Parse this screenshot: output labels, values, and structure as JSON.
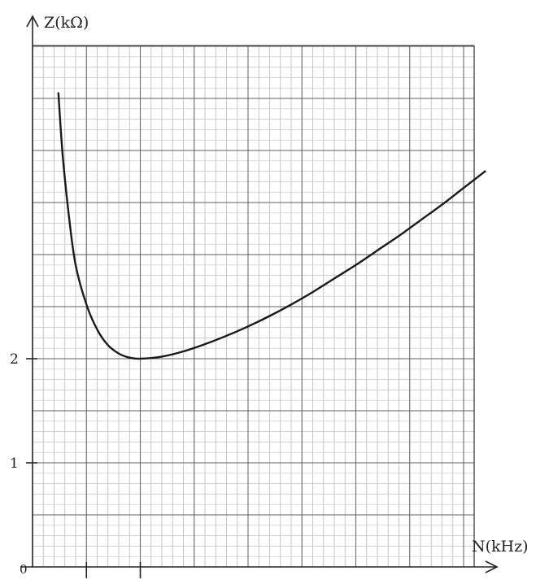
{
  "chart_data": {
    "type": "line",
    "title": "",
    "xlabel": "N(kHz)",
    "ylabel": "Z(kΩ)",
    "xlim": [
      0,
      21
    ],
    "ylim": [
      0,
      5.15
    ],
    "grid": true,
    "y_tick_labels": [
      {
        "value": 0,
        "label": "0"
      },
      {
        "value": 1,
        "label": "1"
      },
      {
        "value": 2,
        "label": "2"
      }
    ],
    "x_tick_marks": [
      2.5,
      5
    ],
    "series": [
      {
        "color": "#1a1a1a",
        "x": [
          1.2,
          1.4,
          1.7,
          2.0,
          2.5,
          3.0,
          3.5,
          4.0,
          4.5,
          5.0,
          6.0,
          7.0,
          8.0,
          9.0,
          10.0,
          11.0,
          12.0,
          13.0,
          14.0,
          15.0,
          16.0,
          17.0,
          18.0,
          19.0,
          20.0,
          21.0
        ],
        "y": [
          4.55,
          3.95,
          3.35,
          2.9,
          2.52,
          2.28,
          2.13,
          2.05,
          2.01,
          2.0,
          2.02,
          2.07,
          2.14,
          2.22,
          2.31,
          2.41,
          2.52,
          2.64,
          2.77,
          2.9,
          3.04,
          3.18,
          3.33,
          3.48,
          3.64,
          3.8
        ]
      }
    ]
  }
}
